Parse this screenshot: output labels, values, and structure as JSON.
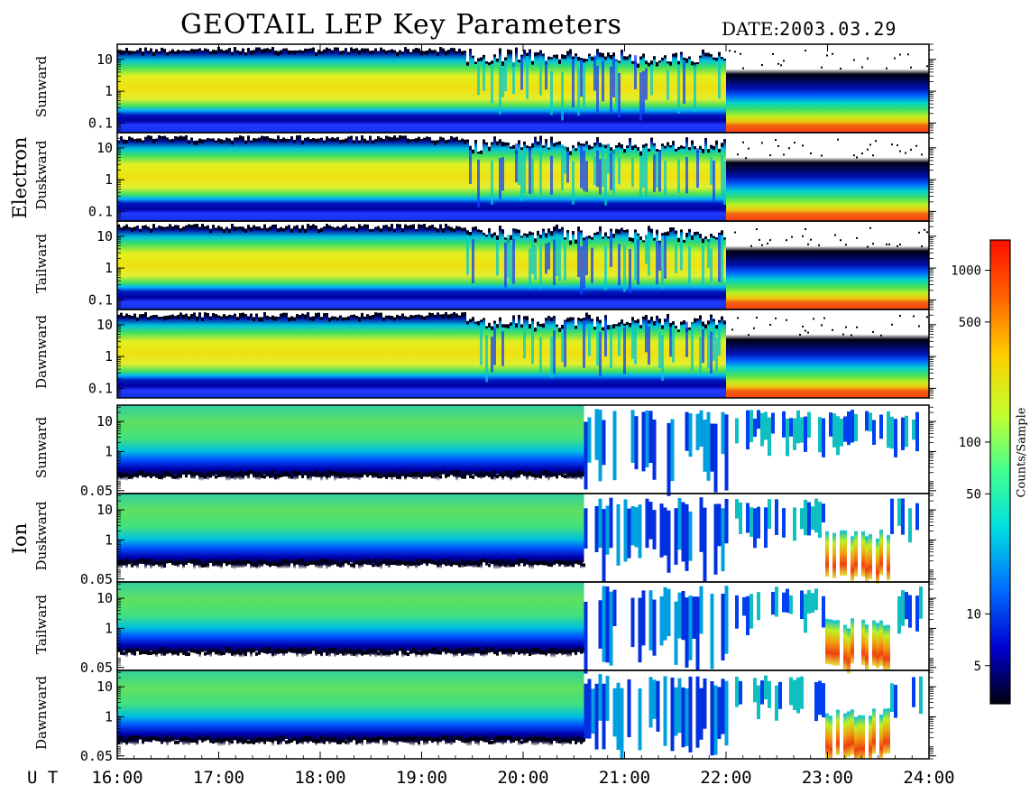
{
  "title": "GEOTAIL LEP Key Parameters",
  "date_label": "DATE:",
  "date_value": "2003.03.29",
  "chart_data": {
    "type": "heatmap",
    "time_axis_label": "U T",
    "time_ticks": [
      "16:00",
      "17:00",
      "18:00",
      "19:00",
      "20:00",
      "21:00",
      "22:00",
      "23:00",
      "24:00"
    ],
    "time_range_hours": [
      16,
      24
    ],
    "groups": [
      {
        "name": "Electron",
        "y_ticks": [
          "10",
          "1",
          "0.1"
        ],
        "y_tick_values": [
          10,
          1,
          0.1
        ],
        "y_range": [
          0.05,
          30
        ],
        "panels": [
          "Sunward",
          "Duskward",
          "Tailward",
          "Dawnward"
        ]
      },
      {
        "name": "Ion",
        "y_ticks": [
          "10",
          "1",
          "0.05"
        ],
        "y_tick_values": [
          10,
          1,
          0.05
        ],
        "y_range": [
          0.04,
          35
        ],
        "panels": [
          "Sunward",
          "Duskward",
          "Tailward",
          "Dawnward"
        ]
      }
    ],
    "colorbar": {
      "label": "Counts/Sample",
      "scale": "log",
      "range": [
        3,
        1500
      ],
      "ticks": [
        "1000",
        "500",
        "100",
        "50",
        "10",
        "5"
      ],
      "tick_values": [
        1000,
        500,
        100,
        50,
        10,
        5
      ]
    }
  }
}
